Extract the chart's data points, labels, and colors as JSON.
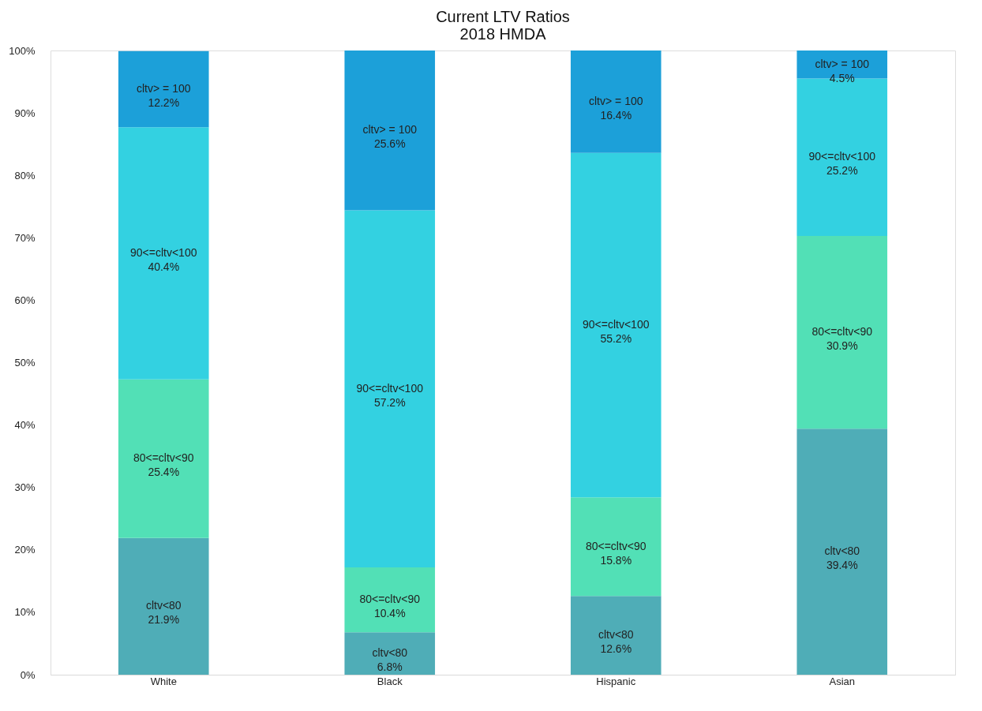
{
  "chart_data": {
    "type": "bar",
    "title": "Current LTV Ratios",
    "subtitle": "2018 HMDA",
    "stacked": true,
    "categories": [
      "White",
      "Black",
      "Hispanic",
      "Asian"
    ],
    "series": [
      {
        "name": "cltv<80",
        "color": "#4fadb7",
        "values": [
          21.9,
          6.8,
          12.6,
          39.4
        ],
        "value_labels": [
          "21.9%",
          "6.8%",
          "12.6%",
          "39.4%"
        ]
      },
      {
        "name": "80<=cltv<90",
        "color": "#52e0b6",
        "values": [
          25.4,
          10.4,
          15.8,
          30.9
        ],
        "value_labels": [
          "25.4%",
          "10.4%",
          "15.8%",
          "30.9%"
        ]
      },
      {
        "name": "90<=cltv<100",
        "color": "#33d1e1",
        "values": [
          40.4,
          57.2,
          55.2,
          25.2
        ],
        "value_labels": [
          "40.4%",
          "57.2%",
          "55.2%",
          "25.2%"
        ]
      },
      {
        "name": "cltv> = 100",
        "color": "#1ca0d9",
        "values": [
          12.2,
          25.6,
          16.4,
          4.5
        ],
        "value_labels": [
          "12.2%",
          "25.6%",
          "16.4%",
          "4.5%"
        ]
      }
    ],
    "ylim": [
      0,
      100
    ],
    "yticks": [
      {
        "value": 0,
        "label": "0%"
      },
      {
        "value": 10,
        "label": "10%"
      },
      {
        "value": 20,
        "label": "20%"
      },
      {
        "value": 30,
        "label": "30%"
      },
      {
        "value": 40,
        "label": "40%"
      },
      {
        "value": 50,
        "label": "50%"
      },
      {
        "value": 60,
        "label": "60%"
      },
      {
        "value": 70,
        "label": "70%"
      },
      {
        "value": 80,
        "label": "80%"
      },
      {
        "value": 90,
        "label": "90%"
      },
      {
        "value": 100,
        "label": "100%"
      }
    ],
    "grid": false,
    "legend": false
  }
}
